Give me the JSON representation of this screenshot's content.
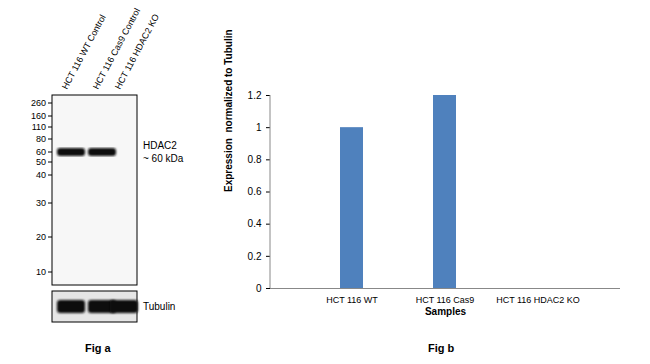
{
  "chart_data": {
    "type": "bar",
    "categories": [
      "HCT 116 WT",
      "HCT 116 Cas9",
      "HCT 116 HDAC2 KO"
    ],
    "values": [
      1,
      1.2,
      0
    ],
    "color": "#4f81bd",
    "xlabel": "Samples",
    "ylabel": "Expression  normalized to Tubulin",
    "ylim": [
      0,
      1.2
    ],
    "yticks": [
      0,
      0.2,
      0.4,
      0.6,
      0.8,
      1,
      1.2
    ],
    "grid": false,
    "caption": "Fig b"
  },
  "blot": {
    "lanes": [
      "HCT 116 WT Control",
      "HCT 116 Cas9 Control",
      "HCT 116 HDAC2 KO"
    ],
    "markers": [
      260,
      160,
      110,
      80,
      60,
      50,
      40,
      30,
      20,
      10
    ],
    "target": {
      "label": "HDAC2",
      "size_label": "~ 60 kDa",
      "present": [
        true,
        true,
        false
      ]
    },
    "loading_control": {
      "label": "Tubulin",
      "present": [
        true,
        true,
        true
      ]
    },
    "caption": "Fig a"
  }
}
